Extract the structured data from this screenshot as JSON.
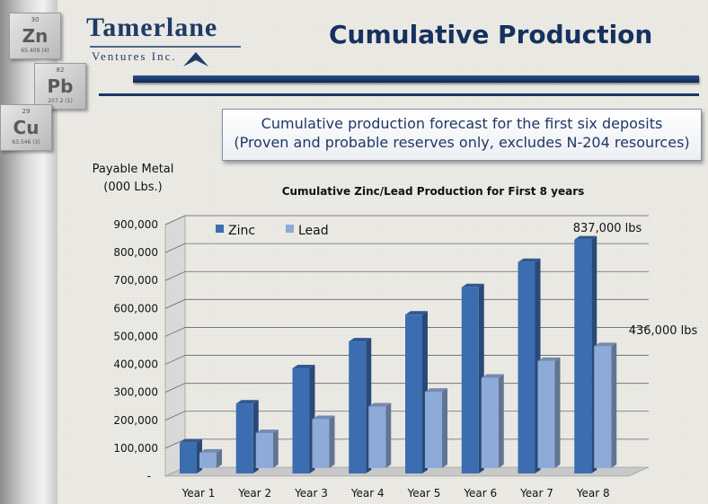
{
  "colors": {
    "zinc": "#3c6db0",
    "lead": "#8eaad8",
    "title": "#15325e",
    "rule": "#1a3563"
  },
  "elements": [
    {
      "number": "30",
      "symbol": "Zn",
      "mass": "65.409 (4)"
    },
    {
      "number": "82",
      "symbol": "Pb",
      "mass": "207.2 (1)"
    },
    {
      "number": "29",
      "symbol": "Cu",
      "mass": "63.546 (3)"
    }
  ],
  "logo": {
    "name": "Tamerlane",
    "sub": "Ventures Inc."
  },
  "page": {
    "title": "Cumulative Production"
  },
  "callout": {
    "line1": "Cumulative production forecast for the first six deposits",
    "line2": "(Proven and probable reserves only, excludes N-204 resources)"
  },
  "chart_data": {
    "type": "bar",
    "title": "Cumulative Zinc/Lead Production for First 8 years",
    "ylabel": "Payable Metal (000 Lbs.)",
    "ylabel_lines": [
      "Payable Metal",
      "(000 Lbs.)"
    ],
    "xlabel": "",
    "categories": [
      "Year 1",
      "Year 2",
      "Year 3",
      "Year 4",
      "Year 5",
      "Year 6",
      "Year 7",
      "Year 8"
    ],
    "series": [
      {
        "name": "Zinc",
        "values": [
          110000,
          250000,
          376000,
          472000,
          568000,
          666000,
          756000,
          837000
        ]
      },
      {
        "name": "Lead",
        "values": [
          55000,
          125000,
          175000,
          220000,
          273000,
          323000,
          383000,
          436000
        ]
      }
    ],
    "ylim": [
      0,
      900000
    ],
    "yticks": [
      "-",
      "100,000",
      "200,000",
      "300,000",
      "400,000",
      "500,000",
      "600,000",
      "700,000",
      "800,000",
      "900,000"
    ],
    "annotations": [
      "837,000 lbs",
      "436,000 lbs"
    ],
    "legend_position": "top-left",
    "grid": true,
    "three_d": true
  }
}
